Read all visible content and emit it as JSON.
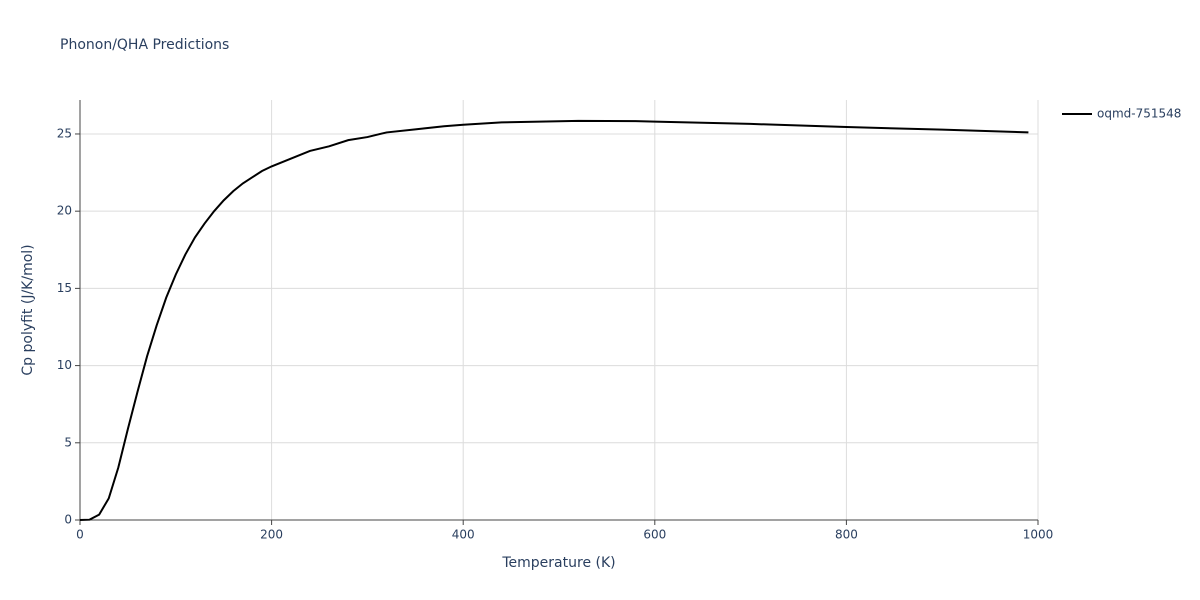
{
  "chart_data": {
    "type": "line",
    "title": "Phonon/QHA Predictions",
    "x_label": "Temperature (K)",
    "y_label": "Cp polyfit (J/K/mol)",
    "x": [
      0,
      10,
      20,
      30,
      40,
      50,
      60,
      70,
      80,
      90,
      100,
      110,
      120,
      130,
      140,
      150,
      160,
      170,
      180,
      190,
      200,
      220,
      240,
      260,
      280,
      300,
      320,
      350,
      380,
      400,
      440,
      500,
      520,
      580,
      600,
      700,
      800,
      900,
      990
    ],
    "series": [
      {
        "name": "oqmd-751548",
        "color": "#000000",
        "values": [
          0,
          0.02,
          0.35,
          1.4,
          3.4,
          5.9,
          8.3,
          10.6,
          12.6,
          14.4,
          15.9,
          17.2,
          18.3,
          19.2,
          20.0,
          20.7,
          21.3,
          21.8,
          22.2,
          22.6,
          22.9,
          23.4,
          23.9,
          24.2,
          24.6,
          24.8,
          25.1,
          25.3,
          25.5,
          25.6,
          25.75,
          25.82,
          25.85,
          25.83,
          25.8,
          25.65,
          25.45,
          25.28,
          25.1
        ]
      }
    ],
    "xlim": [
      0,
      1000
    ],
    "xticks": [
      0,
      200,
      400,
      600,
      800,
      1000
    ],
    "ylim": [
      0,
      27.2
    ],
    "yticks": [
      0,
      5,
      10,
      15,
      20,
      25
    ],
    "grid": true,
    "legend": "right"
  }
}
